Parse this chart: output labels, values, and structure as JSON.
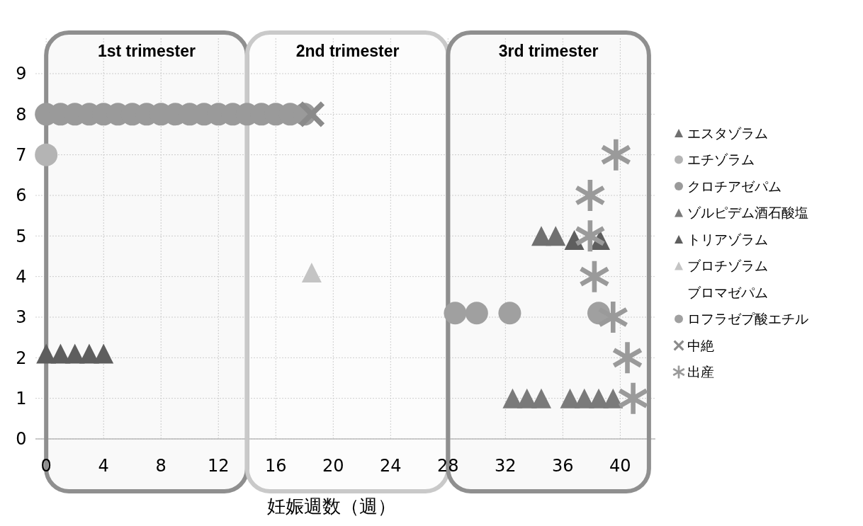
{
  "chart_data": {
    "type": "scatter",
    "xlabel": "妊娠週数（週）",
    "xlim": [
      -0.75,
      42.45
    ],
    "xticks": [
      0,
      4,
      8,
      12,
      16,
      20,
      24,
      28,
      32,
      36,
      40
    ],
    "ylim": [
      0,
      9
    ],
    "yticks": [
      0,
      1,
      2,
      3,
      4,
      5,
      6,
      7,
      8,
      9
    ],
    "grid": true,
    "legend": "right",
    "bands": [
      {
        "axis": "x",
        "from": 0,
        "to": 14,
        "label": "1st trimester",
        "color": "#8f8f8f"
      },
      {
        "axis": "x",
        "from": 14,
        "to": 28,
        "label": "2nd trimester",
        "color": "#c9c9c9"
      },
      {
        "axis": "x",
        "from": 28,
        "to": 42,
        "label": "3rd trimester",
        "color": "#8f8f8f"
      }
    ],
    "series": [
      {
        "name": "エスタゾラム",
        "color": "#707070",
        "marker": "triangle",
        "x": [
          34.5,
          35.5
        ],
        "values": [
          5,
          5
        ]
      },
      {
        "name": "エチゾラム",
        "color": "#b4b4b4",
        "marker": "circle",
        "x": [
          0
        ],
        "values": [
          7
        ]
      },
      {
        "name": "クロチアゼパム",
        "color": "#9a9a9a",
        "marker": "circle",
        "x": [
          0,
          1,
          2,
          3,
          4,
          5,
          6,
          7,
          8,
          9,
          10,
          11,
          12,
          13,
          14,
          15,
          16,
          17,
          18
        ],
        "values": [
          8,
          8,
          8,
          8,
          8,
          8,
          8,
          8,
          8,
          8,
          8,
          8,
          8,
          8,
          8,
          8,
          8,
          8,
          8
        ]
      },
      {
        "name": "ゾルピデム酒石酸塩",
        "color": "#7a7a7a",
        "marker": "triangle",
        "x": [
          32.5,
          33.5,
          34.5,
          36.5,
          37.5,
          38.5,
          39.5
        ],
        "values": [
          1,
          1,
          1,
          1,
          1,
          1,
          1
        ]
      },
      {
        "name": "トリアゾラム",
        "color": "#5e5e5e",
        "marker": "triangle",
        "x": [
          0,
          1,
          2,
          3,
          4,
          36.8,
          38.6
        ],
        "values": [
          2.1,
          2.1,
          2.1,
          2.1,
          2.1,
          4.9,
          4.9
        ]
      },
      {
        "name": "ブロチゾラム",
        "color": "#c4c4c4",
        "marker": "triangle",
        "x": [
          18.5
        ],
        "values": [
          4.1
        ]
      },
      {
        "name": "ブロマゼパム"
      },
      {
        "name": "ロフラゼプ酸エチル",
        "color": "#a0a0a0",
        "marker": "circle",
        "x": [
          28.5,
          30,
          32.3,
          38.5
        ],
        "values": [
          3.1,
          3.1,
          3.1,
          3.1
        ]
      },
      {
        "name": "中絶",
        "color": "#8a8a8a",
        "marker": "cross",
        "x": [
          18.5
        ],
        "values": [
          8
        ]
      },
      {
        "name": "出産",
        "color": "#9a9a9a",
        "marker": "star",
        "x": [
          39.7,
          37.9,
          37.9,
          38.2,
          39.5,
          40.5,
          40.9
        ],
        "values": [
          7,
          6,
          5,
          4,
          3,
          2,
          1
        ]
      }
    ]
  }
}
